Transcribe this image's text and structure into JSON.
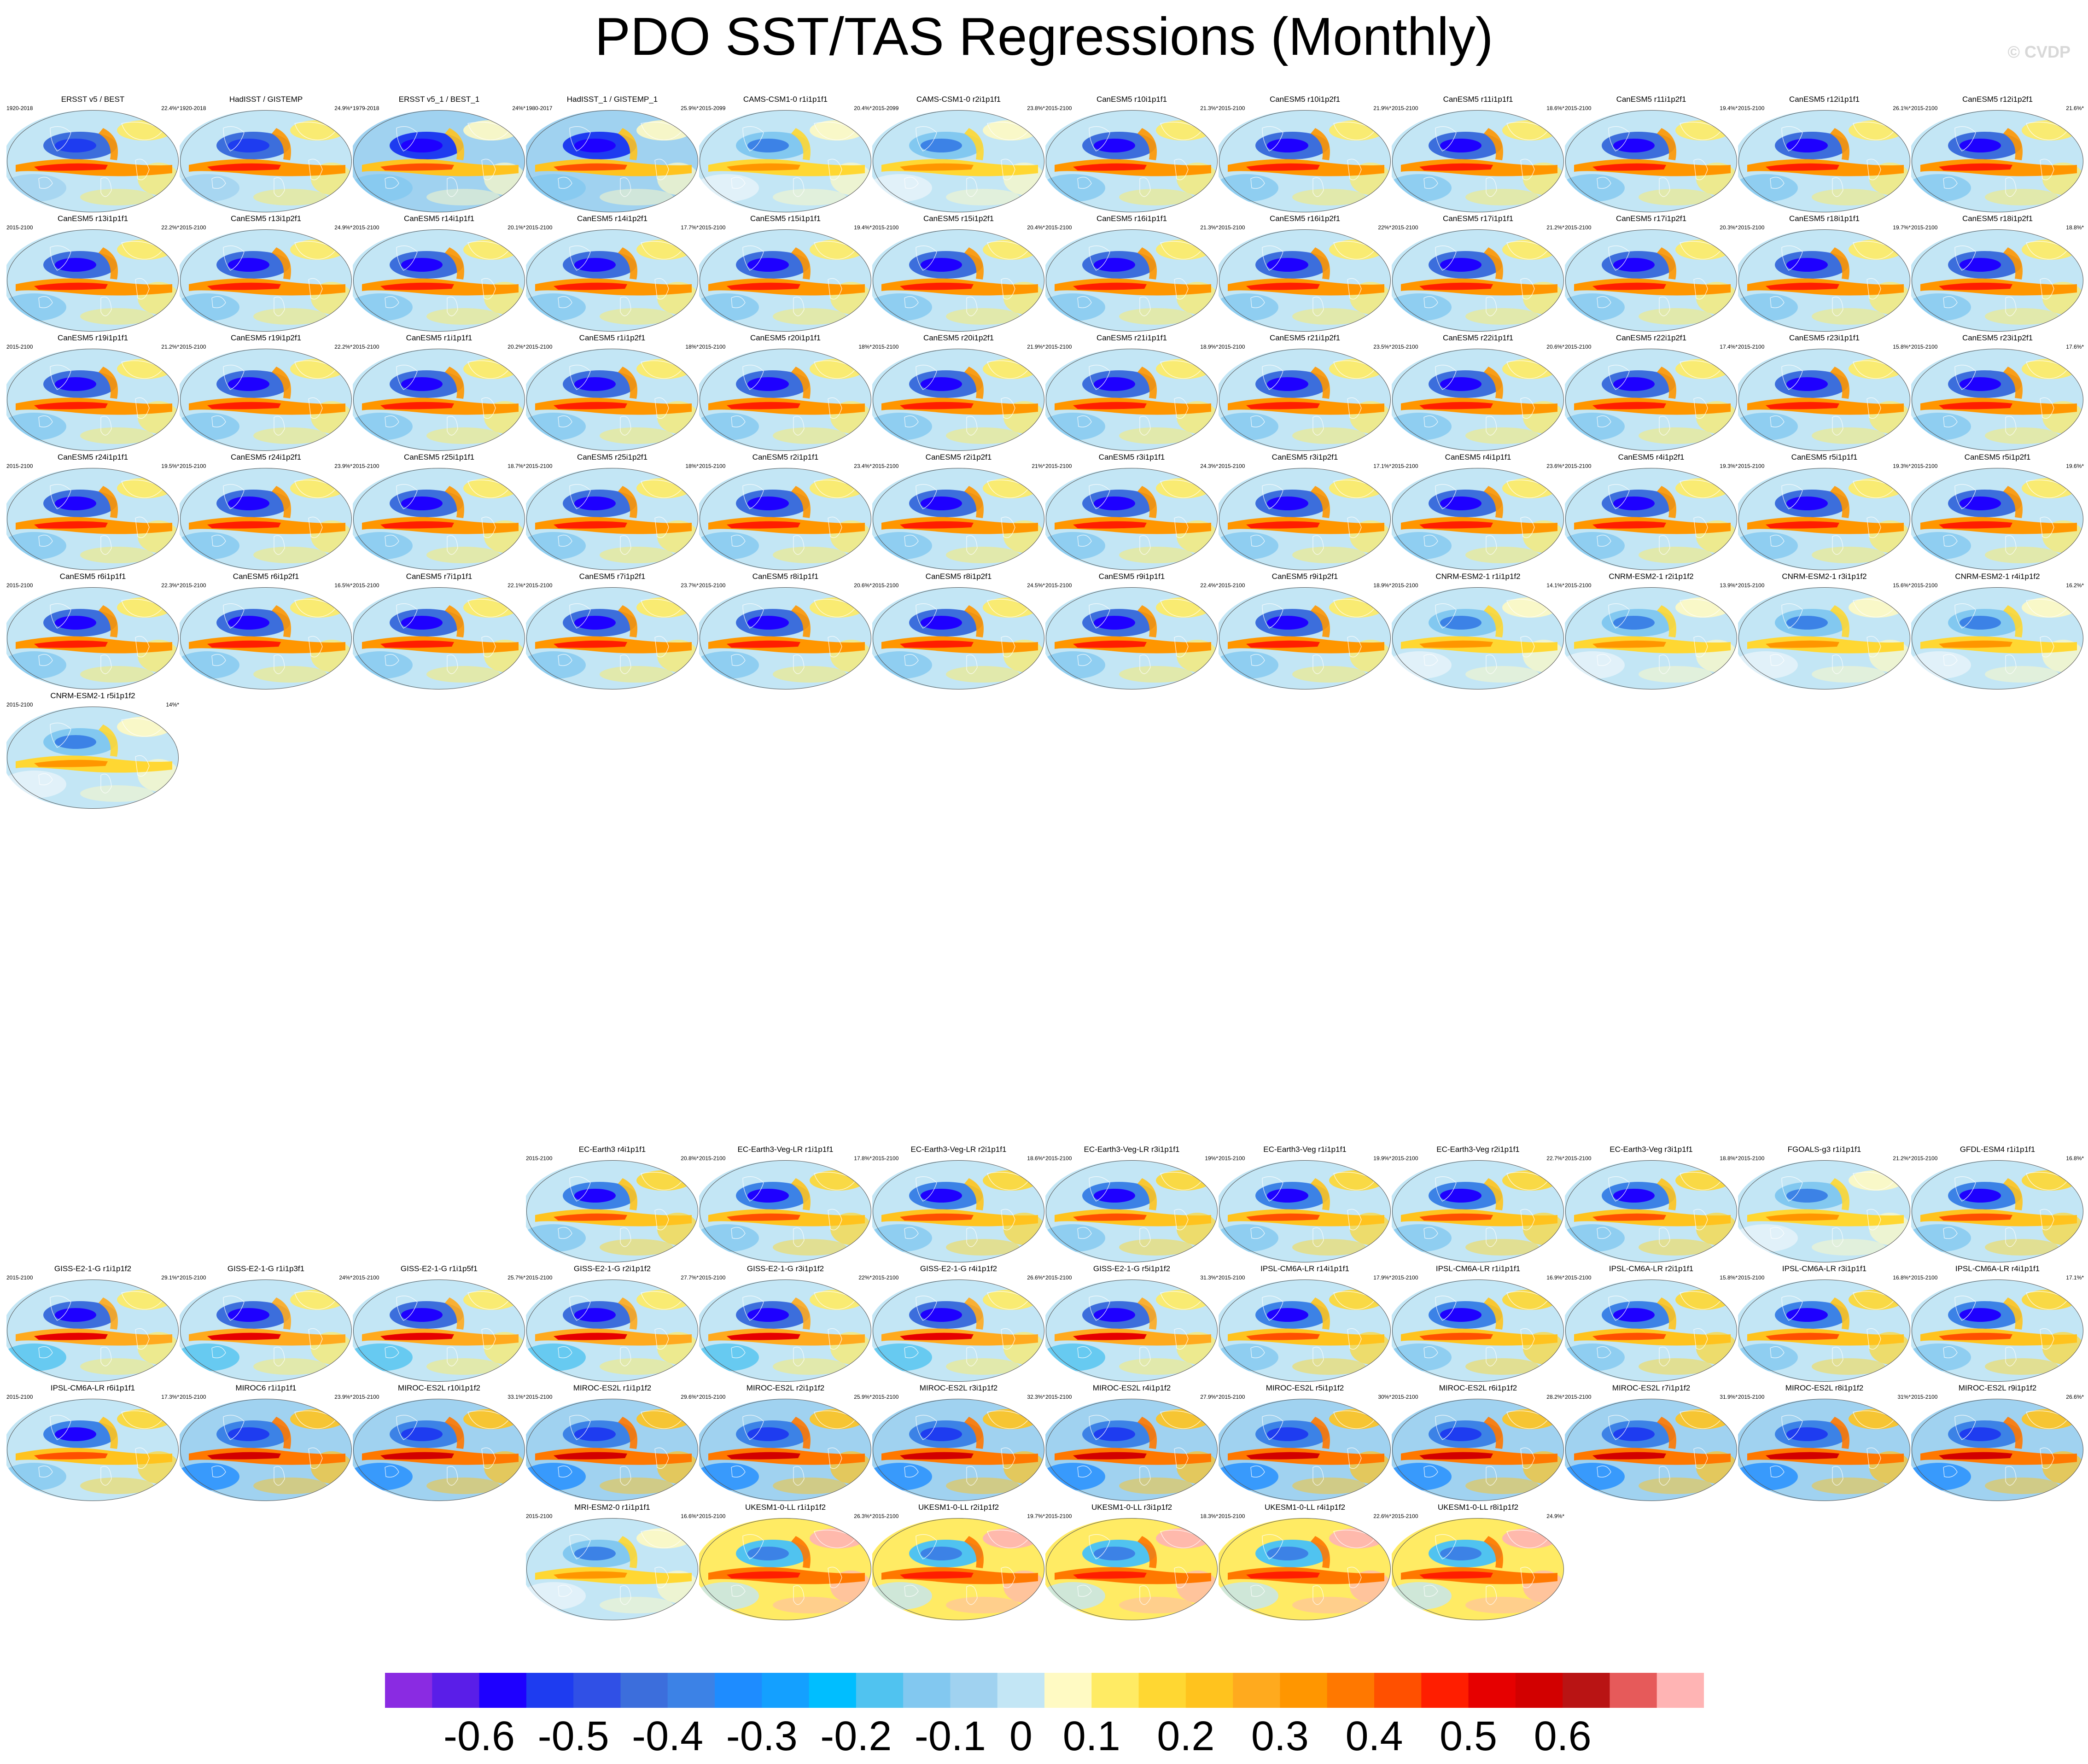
{
  "title": "PDO SST/TAS Regressions (Monthly)",
  "credit": "© CVDP",
  "colorbar": {
    "labels": [
      "-0.6",
      "-0.5",
      "-0.4",
      "-0.3",
      "-0.2",
      "-0.1",
      "0",
      "0.1",
      "0.2",
      "0.3",
      "0.4",
      "0.5",
      "0.6"
    ],
    "colors": [
      "#8a2be2",
      "#5a1ee8",
      "#1e00ff",
      "#1e3cf0",
      "#3050e6",
      "#3c6edc",
      "#3c82e6",
      "#1e8cff",
      "#14a0ff",
      "#00beff",
      "#50c3f0",
      "#82c8f0",
      "#a0d2f0",
      "#c3e6f5",
      "#fffac3",
      "#ffeb64",
      "#ffd732",
      "#ffc31e",
      "#ffaa1e",
      "#ff9600",
      "#ff7800",
      "#ff5000",
      "#ff1e00",
      "#e60000",
      "#d20000",
      "#b91414",
      "#e65a5a",
      "#ffb4b4"
    ]
  },
  "chart_data": {
    "type": "map-panels",
    "description_unit": "regression coefficient",
    "color_levels": [
      -0.65,
      -0.6,
      -0.55,
      -0.5,
      -0.45,
      -0.4,
      -0.35,
      -0.3,
      -0.25,
      -0.2,
      -0.15,
      -0.1,
      -0.05,
      0,
      0.05,
      0.1,
      0.15,
      0.2,
      0.25,
      0.3,
      0.35,
      0.4,
      0.45,
      0.5,
      0.55,
      0.6,
      0.65
    ],
    "panels": [
      {
        "title": "ERSST v5 / BEST",
        "years": "1920-2018",
        "pct": "22.4%*",
        "style": "obs"
      },
      {
        "title": "HadISST / GISTEMP",
        "years": "1920-2018",
        "pct": "24.9%*",
        "style": "obs"
      },
      {
        "title": "ERSST v5_1 / BEST_1",
        "years": "1979-2018",
        "pct": "24%*",
        "style": "obs-strong"
      },
      {
        "title": "HadISST_1 / GISTEMP_1",
        "years": "1980-2017",
        "pct": "25.9%*",
        "style": "obs-strong"
      },
      {
        "title": "CAMS-CSM1-0 r1i1p1f1",
        "years": "2015-2099",
        "pct": "20.4%*",
        "style": "pale"
      },
      {
        "title": "CAMS-CSM1-0 r2i1p1f1",
        "years": "2015-2099",
        "pct": "23.8%*",
        "style": "pale"
      },
      {
        "title": "CanESM5 r10i1p1f1",
        "years": "2015-2100",
        "pct": "21.3%*",
        "style": "canesm"
      },
      {
        "title": "CanESM5 r10i1p2f1",
        "years": "2015-2100",
        "pct": "21.9%*",
        "style": "canesm"
      },
      {
        "title": "CanESM5 r11i1p1f1",
        "years": "2015-2100",
        "pct": "18.6%*",
        "style": "canesm"
      },
      {
        "title": "CanESM5 r11i1p2f1",
        "years": "2015-2100",
        "pct": "19.4%*",
        "style": "canesm"
      },
      {
        "title": "CanESM5 r12i1p1f1",
        "years": "2015-2100",
        "pct": "26.1%*",
        "style": "canesm"
      },
      {
        "title": "CanESM5 r12i1p2f1",
        "years": "2015-2100",
        "pct": "21.6%*",
        "style": "canesm"
      },
      {
        "title": "CanESM5 r13i1p1f1",
        "years": "2015-2100",
        "pct": "22.2%*",
        "style": "canesm"
      },
      {
        "title": "CanESM5 r13i1p2f1",
        "years": "2015-2100",
        "pct": "24.9%*",
        "style": "canesm"
      },
      {
        "title": "CanESM5 r14i1p1f1",
        "years": "2015-2100",
        "pct": "20.1%*",
        "style": "canesm"
      },
      {
        "title": "CanESM5 r14i1p2f1",
        "years": "2015-2100",
        "pct": "17.7%*",
        "style": "canesm"
      },
      {
        "title": "CanESM5 r15i1p1f1",
        "years": "2015-2100",
        "pct": "19.4%*",
        "style": "canesm"
      },
      {
        "title": "CanESM5 r15i1p2f1",
        "years": "2015-2100",
        "pct": "20.4%*",
        "style": "canesm"
      },
      {
        "title": "CanESM5 r16i1p1f1",
        "years": "2015-2100",
        "pct": "21.3%*",
        "style": "canesm"
      },
      {
        "title": "CanESM5 r16i1p2f1",
        "years": "2015-2100",
        "pct": "22%*",
        "style": "canesm"
      },
      {
        "title": "CanESM5 r17i1p1f1",
        "years": "2015-2100",
        "pct": "21.2%*",
        "style": "canesm"
      },
      {
        "title": "CanESM5 r17i1p2f1",
        "years": "2015-2100",
        "pct": "20.3%*",
        "style": "canesm"
      },
      {
        "title": "CanESM5 r18i1p1f1",
        "years": "2015-2100",
        "pct": "19.7%*",
        "style": "canesm"
      },
      {
        "title": "CanESM5 r18i1p2f1",
        "years": "2015-2100",
        "pct": "18.8%*",
        "style": "canesm"
      },
      {
        "title": "CanESM5 r19i1p1f1",
        "years": "2015-2100",
        "pct": "21.2%*",
        "style": "canesm"
      },
      {
        "title": "CanESM5 r19i1p2f1",
        "years": "2015-2100",
        "pct": "22.2%*",
        "style": "canesm"
      },
      {
        "title": "CanESM5 r1i1p1f1",
        "years": "2015-2100",
        "pct": "20.2%*",
        "style": "canesm"
      },
      {
        "title": "CanESM5 r1i1p2f1",
        "years": "2015-2100",
        "pct": "18%*",
        "style": "canesm"
      },
      {
        "title": "CanESM5 r20i1p1f1",
        "years": "2015-2100",
        "pct": "18%*",
        "style": "canesm"
      },
      {
        "title": "CanESM5 r20i1p2f1",
        "years": "2015-2100",
        "pct": "21.9%*",
        "style": "canesm"
      },
      {
        "title": "CanESM5 r21i1p1f1",
        "years": "2015-2100",
        "pct": "18.9%*",
        "style": "canesm"
      },
      {
        "title": "CanESM5 r21i1p2f1",
        "years": "2015-2100",
        "pct": "23.5%*",
        "style": "canesm"
      },
      {
        "title": "CanESM5 r22i1p1f1",
        "years": "2015-2100",
        "pct": "20.6%*",
        "style": "canesm"
      },
      {
        "title": "CanESM5 r22i1p2f1",
        "years": "2015-2100",
        "pct": "17.4%*",
        "style": "canesm"
      },
      {
        "title": "CanESM5 r23i1p1f1",
        "years": "2015-2100",
        "pct": "15.8%*",
        "style": "canesm"
      },
      {
        "title": "CanESM5 r23i1p2f1",
        "years": "2015-2100",
        "pct": "17.6%*",
        "style": "canesm"
      },
      {
        "title": "CanESM5 r24i1p1f1",
        "years": "2015-2100",
        "pct": "19.5%*",
        "style": "canesm"
      },
      {
        "title": "CanESM5 r24i1p2f1",
        "years": "2015-2100",
        "pct": "23.9%*",
        "style": "canesm"
      },
      {
        "title": "CanESM5 r25i1p1f1",
        "years": "2015-2100",
        "pct": "18.7%*",
        "style": "canesm"
      },
      {
        "title": "CanESM5 r25i1p2f1",
        "years": "2015-2100",
        "pct": "18%*",
        "style": "canesm"
      },
      {
        "title": "CanESM5 r2i1p1f1",
        "years": "2015-2100",
        "pct": "23.4%*",
        "style": "canesm"
      },
      {
        "title": "CanESM5 r2i1p2f1",
        "years": "2015-2100",
        "pct": "21%*",
        "style": "canesm"
      },
      {
        "title": "CanESM5 r3i1p1f1",
        "years": "2015-2100",
        "pct": "24.3%*",
        "style": "canesm"
      },
      {
        "title": "CanESM5 r3i1p2f1",
        "years": "2015-2100",
        "pct": "17.1%*",
        "style": "canesm"
      },
      {
        "title": "CanESM5 r4i1p1f1",
        "years": "2015-2100",
        "pct": "23.6%*",
        "style": "canesm"
      },
      {
        "title": "CanESM5 r4i1p2f1",
        "years": "2015-2100",
        "pct": "19.3%*",
        "style": "canesm"
      },
      {
        "title": "CanESM5 r5i1p1f1",
        "years": "2015-2100",
        "pct": "19.3%*",
        "style": "canesm"
      },
      {
        "title": "CanESM5 r5i1p2f1",
        "years": "2015-2100",
        "pct": "19.6%*",
        "style": "canesm"
      },
      {
        "title": "CanESM5 r6i1p1f1",
        "years": "2015-2100",
        "pct": "22.3%*",
        "style": "canesm"
      },
      {
        "title": "CanESM5 r6i1p2f1",
        "years": "2015-2100",
        "pct": "16.5%*",
        "style": "canesm"
      },
      {
        "title": "CanESM5 r7i1p1f1",
        "years": "2015-2100",
        "pct": "22.1%*",
        "style": "canesm"
      },
      {
        "title": "CanESM5 r7i1p2f1",
        "years": "2015-2100",
        "pct": "23.7%*",
        "style": "canesm"
      },
      {
        "title": "CanESM5 r8i1p1f1",
        "years": "2015-2100",
        "pct": "20.6%*",
        "style": "canesm"
      },
      {
        "title": "CanESM5 r8i1p2f1",
        "years": "2015-2100",
        "pct": "24.5%*",
        "style": "canesm"
      },
      {
        "title": "CanESM5 r9i1p1f1",
        "years": "2015-2100",
        "pct": "22.4%*",
        "style": "canesm"
      },
      {
        "title": "CanESM5 r9i1p2f1",
        "years": "2015-2100",
        "pct": "18.9%*",
        "style": "canesm"
      },
      {
        "title": "CNRM-ESM2-1 r1i1p1f2",
        "years": "2015-2100",
        "pct": "14.1%*",
        "style": "pale"
      },
      {
        "title": "CNRM-ESM2-1 r2i1p1f2",
        "years": "2015-2100",
        "pct": "13.9%*",
        "style": "pale"
      },
      {
        "title": "CNRM-ESM2-1 r3i1p1f2",
        "years": "2015-2100",
        "pct": "15.6%*",
        "style": "pale"
      },
      {
        "title": "CNRM-ESM2-1 r4i1p1f2",
        "years": "2015-2100",
        "pct": "16.2%*",
        "style": "pale"
      },
      {
        "title": "CNRM-ESM2-1 r5i1p1f2",
        "years": "2015-2100",
        "pct": "14%*",
        "style": "pale"
      },
      {
        "title": "EC-Earth3 r4i1p1f1",
        "years": "2015-2100",
        "pct": "20.8%*",
        "style": "ec"
      },
      {
        "title": "EC-Earth3-Veg-LR r1i1p1f1",
        "years": "2015-2100",
        "pct": "17.8%*",
        "style": "ec"
      },
      {
        "title": "EC-Earth3-Veg-LR r2i1p1f1",
        "years": "2015-2100",
        "pct": "18.6%*",
        "style": "ec"
      },
      {
        "title": "EC-Earth3-Veg-LR r3i1p1f1",
        "years": "2015-2100",
        "pct": "19%*",
        "style": "ec"
      },
      {
        "title": "EC-Earth3-Veg r1i1p1f1",
        "years": "2015-2100",
        "pct": "19.9%*",
        "style": "ec"
      },
      {
        "title": "EC-Earth3-Veg r2i1p1f1",
        "years": "2015-2100",
        "pct": "22.7%*",
        "style": "ec"
      },
      {
        "title": "EC-Earth3-Veg r3i1p1f1",
        "years": "2015-2100",
        "pct": "18.8%*",
        "style": "ec"
      },
      {
        "title": "FGOALS-g3 r1i1p1f1",
        "years": "2015-2100",
        "pct": "21.2%*",
        "style": "pale"
      },
      {
        "title": "GFDL-ESM4 r1i1p1f1",
        "years": "2015-2100",
        "pct": "16.8%*",
        "style": "ec"
      },
      {
        "title": "GISS-E2-1-G r1i1p1f2",
        "years": "2015-2100",
        "pct": "29.1%*",
        "style": "giss"
      },
      {
        "title": "GISS-E2-1-G r1i1p3f1",
        "years": "2015-2100",
        "pct": "24%*",
        "style": "giss"
      },
      {
        "title": "GISS-E2-1-G r1i1p5f1",
        "years": "2015-2100",
        "pct": "25.7%*",
        "style": "giss"
      },
      {
        "title": "GISS-E2-1-G r2i1p1f2",
        "years": "2015-2100",
        "pct": "27.7%*",
        "style": "giss"
      },
      {
        "title": "GISS-E2-1-G r3i1p1f2",
        "years": "2015-2100",
        "pct": "22%*",
        "style": "giss"
      },
      {
        "title": "GISS-E2-1-G r4i1p1f2",
        "years": "2015-2100",
        "pct": "26.6%*",
        "style": "giss"
      },
      {
        "title": "GISS-E2-1-G r5i1p1f2",
        "years": "2015-2100",
        "pct": "31.3%*",
        "style": "giss"
      },
      {
        "title": "IPSL-CM6A-LR r14i1p1f1",
        "years": "2015-2100",
        "pct": "17.9%*",
        "style": "ec"
      },
      {
        "title": "IPSL-CM6A-LR r1i1p1f1",
        "years": "2015-2100",
        "pct": "16.9%*",
        "style": "ec"
      },
      {
        "title": "IPSL-CM6A-LR r2i1p1f1",
        "years": "2015-2100",
        "pct": "15.8%*",
        "style": "ec"
      },
      {
        "title": "IPSL-CM6A-LR r3i1p1f1",
        "years": "2015-2100",
        "pct": "16.8%*",
        "style": "ec"
      },
      {
        "title": "IPSL-CM6A-LR r4i1p1f1",
        "years": "2015-2100",
        "pct": "17.1%*",
        "style": "ec"
      },
      {
        "title": "IPSL-CM6A-LR r6i1p1f1",
        "years": "2015-2100",
        "pct": "17.3%*",
        "style": "ec"
      },
      {
        "title": "MIROC6 r1i1p1f1",
        "years": "2015-2100",
        "pct": "23.9%*",
        "style": "miroc"
      },
      {
        "title": "MIROC-ES2L r10i1p1f2",
        "years": "2015-2100",
        "pct": "33.1%*",
        "style": "miroc"
      },
      {
        "title": "MIROC-ES2L r1i1p1f2",
        "years": "2015-2100",
        "pct": "29.6%*",
        "style": "miroc"
      },
      {
        "title": "MIROC-ES2L r2i1p1f2",
        "years": "2015-2100",
        "pct": "25.9%*",
        "style": "miroc"
      },
      {
        "title": "MIROC-ES2L r3i1p1f2",
        "years": "2015-2100",
        "pct": "32.3%*",
        "style": "miroc"
      },
      {
        "title": "MIROC-ES2L r4i1p1f2",
        "years": "2015-2100",
        "pct": "27.9%*",
        "style": "miroc"
      },
      {
        "title": "MIROC-ES2L r5i1p1f2",
        "years": "2015-2100",
        "pct": "30%*",
        "style": "miroc"
      },
      {
        "title": "MIROC-ES2L r6i1p1f2",
        "years": "2015-2100",
        "pct": "28.2%*",
        "style": "miroc"
      },
      {
        "title": "MIROC-ES2L r7i1p1f2",
        "years": "2015-2100",
        "pct": "31.9%*",
        "style": "miroc"
      },
      {
        "title": "MIROC-ES2L r8i1p1f2",
        "years": "2015-2100",
        "pct": "31%*",
        "style": "miroc"
      },
      {
        "title": "MIROC-ES2L r9i1p1f2",
        "years": "2015-2100",
        "pct": "26.6%*",
        "style": "miroc"
      },
      {
        "title": "MRI-ESM2-0 r1i1p1f1",
        "years": "2015-2100",
        "pct": "16.6%*",
        "style": "pale"
      },
      {
        "title": "UKESM1-0-LL r1i1p1f2",
        "years": "2015-2100",
        "pct": "26.3%*",
        "style": "ukesm"
      },
      {
        "title": "UKESM1-0-LL r2i1p1f2",
        "years": "2015-2100",
        "pct": "19.7%*",
        "style": "ukesm"
      },
      {
        "title": "UKESM1-0-LL r3i1p1f2",
        "years": "2015-2100",
        "pct": "18.3%*",
        "style": "ukesm"
      },
      {
        "title": "UKESM1-0-LL r4i1p1f2",
        "years": "2015-2100",
        "pct": "22.6%*",
        "style": "ukesm"
      },
      {
        "title": "UKESM1-0-LL r8i1p1f2",
        "years": "2015-2100",
        "pct": "24.9%*",
        "style": "ukesm"
      }
    ]
  }
}
